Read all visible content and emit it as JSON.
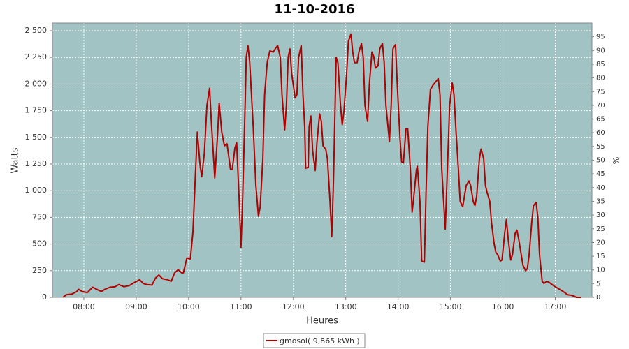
{
  "chart_data": {
    "type": "line",
    "title": "11-10-2016",
    "xlabel": "Heures",
    "ylabel": "Watts",
    "y2label": "%",
    "x": [
      "07:36",
      "07:40",
      "07:46",
      "07:52",
      "07:54",
      "07:58",
      "08:04",
      "08:10",
      "08:16",
      "08:20",
      "08:24",
      "08:30",
      "08:36",
      "08:40",
      "08:46",
      "08:52",
      "08:58",
      "09:04",
      "09:08",
      "09:12",
      "09:18",
      "09:22",
      "09:26",
      "09:30",
      "09:36",
      "09:40",
      "09:44",
      "09:48",
      "09:52",
      "09:54",
      "09:58",
      "10:02",
      "10:05",
      "10:08",
      "10:10",
      "10:13",
      "10:15",
      "10:18",
      "10:21",
      "10:24",
      "10:26",
      "10:29",
      "10:30",
      "10:33",
      "10:35",
      "10:38",
      "10:41",
      "10:44",
      "10:48",
      "10:50",
      "10:53",
      "10:55",
      "10:58",
      "11:00",
      "11:02",
      "11:05",
      "11:06",
      "11:08",
      "11:10",
      "11:14",
      "11:17",
      "11:20",
      "11:22",
      "11:25",
      "11:27",
      "11:30",
      "11:33",
      "11:37",
      "11:40",
      "11:42",
      "11:45",
      "11:47",
      "11:50",
      "11:52",
      "11:54",
      "11:56",
      "11:58",
      "12:02",
      "12:04",
      "12:06",
      "12:09",
      "12:11",
      "12:13",
      "12:14",
      "12:17",
      "12:18",
      "12:20",
      "12:22",
      "12:25",
      "12:27",
      "12:30",
      "12:32",
      "12:34",
      "12:37",
      "12:39",
      "12:42",
      "12:44",
      "12:46",
      "12:49",
      "12:51",
      "12:54",
      "12:56",
      "12:58",
      "13:01",
      "13:03",
      "13:06",
      "13:08",
      "13:10",
      "13:13",
      "13:15",
      "13:18",
      "13:20",
      "13:22",
      "13:25",
      "13:27",
      "13:30",
      "13:32",
      "13:34",
      "13:37",
      "13:39",
      "13:42",
      "13:44",
      "13:46",
      "13:50",
      "13:52",
      "13:54",
      "13:57",
      "13:59",
      "14:02",
      "14:04",
      "14:06",
      "14:09",
      "14:11",
      "14:14",
      "14:16",
      "14:18",
      "14:21",
      "14:22",
      "14:25",
      "14:27",
      "14:30",
      "14:32",
      "14:34",
      "14:37",
      "14:40",
      "14:43",
      "14:46",
      "14:48",
      "14:50",
      "14:54",
      "14:56",
      "14:59",
      "15:02",
      "15:04",
      "15:06",
      "15:09",
      "15:11",
      "15:14",
      "15:16",
      "15:18",
      "15:21",
      "15:23",
      "15:26",
      "15:28",
      "15:30",
      "15:33",
      "15:35",
      "15:38",
      "15:40",
      "15:42",
      "15:45",
      "15:47",
      "15:50",
      "15:52",
      "15:54",
      "15:57",
      "15:59",
      "16:02",
      "16:04",
      "16:06",
      "16:09",
      "16:11",
      "16:14",
      "16:16",
      "16:18",
      "16:21",
      "16:23",
      "16:26",
      "16:28",
      "16:30",
      "16:33",
      "16:35",
      "16:38",
      "16:40",
      "16:42",
      "16:45",
      "16:47",
      "16:50",
      "16:53",
      "16:58",
      "17:04",
      "17:10",
      "17:14",
      "17:18",
      "17:22",
      "17:24",
      "17:30"
    ],
    "series": [
      {
        "name": "gmosol( 9,865 kWh )",
        "color": "#b00000",
        "values": [
          0,
          25,
          30,
          55,
          75,
          55,
          45,
          95,
          70,
          55,
          75,
          95,
          100,
          120,
          100,
          110,
          140,
          165,
          130,
          120,
          115,
          180,
          210,
          175,
          165,
          150,
          230,
          260,
          230,
          230,
          370,
          360,
          620,
          1200,
          1550,
          1250,
          1130,
          1350,
          1800,
          1960,
          1650,
          1250,
          1120,
          1500,
          1820,
          1550,
          1420,
          1440,
          1200,
          1200,
          1400,
          1450,
          900,
          470,
          950,
          1900,
          2250,
          2360,
          2200,
          1600,
          1050,
          760,
          850,
          1300,
          1900,
          2200,
          2310,
          2300,
          2340,
          2360,
          2250,
          1900,
          1570,
          1800,
          2250,
          2330,
          2100,
          1870,
          1900,
          2250,
          2360,
          1900,
          1600,
          1210,
          1220,
          1600,
          1700,
          1380,
          1190,
          1450,
          1720,
          1650,
          1420,
          1390,
          1300,
          900,
          570,
          1100,
          2250,
          2200,
          1800,
          1620,
          1750,
          2100,
          2400,
          2470,
          2300,
          2200,
          2200,
          2300,
          2380,
          2250,
          1800,
          1650,
          2000,
          2300,
          2260,
          2150,
          2170,
          2330,
          2380,
          2200,
          1800,
          1460,
          1800,
          2330,
          2370,
          2000,
          1500,
          1270,
          1260,
          1580,
          1580,
          1200,
          800,
          950,
          1200,
          1230,
          900,
          340,
          330,
          1000,
          1600,
          1950,
          1990,
          2020,
          2050,
          1900,
          1200,
          640,
          1100,
          1800,
          2010,
          1900,
          1600,
          1200,
          900,
          850,
          950,
          1050,
          1090,
          1050,
          900,
          860,
          950,
          1300,
          1390,
          1300,
          1050,
          980,
          900,
          700,
          500,
          420,
          400,
          340,
          350,
          600,
          730,
          550,
          350,
          400,
          600,
          630,
          550,
          400,
          300,
          250,
          270,
          400,
          700,
          860,
          890,
          750,
          400,
          150,
          130,
          150,
          140,
          110,
          80,
          50,
          25,
          20,
          10,
          0,
          0
        ]
      }
    ],
    "xlim": [
      "07:24",
      "17:42"
    ],
    "xticks": [
      "08:00",
      "09:00",
      "10:00",
      "11:00",
      "12:00",
      "13:00",
      "14:00",
      "15:00",
      "16:00",
      "17:00"
    ],
    "ylim": [
      0,
      2572
    ],
    "yticks": [
      0,
      250,
      500,
      750,
      {
        "value": 1000,
        "label": "1 000"
      },
      {
        "value": 1250,
        "label": "1 250"
      },
      {
        "value": 1500,
        "label": "1 500"
      },
      {
        "value": 1750,
        "label": "1 750"
      },
      {
        "value": 2000,
        "label": "2 000"
      },
      {
        "value": 2250,
        "label": "2 250"
      },
      {
        "value": 2500,
        "label": "2 500"
      }
    ],
    "y2lim": [
      0,
      100
    ],
    "y2ticks": [
      0,
      5,
      10,
      15,
      20,
      25,
      30,
      35,
      40,
      45,
      50,
      55,
      60,
      65,
      70,
      75,
      80,
      85,
      90,
      95
    ],
    "grid": true,
    "background": "#a1c3c3",
    "legend": "bottom"
  }
}
